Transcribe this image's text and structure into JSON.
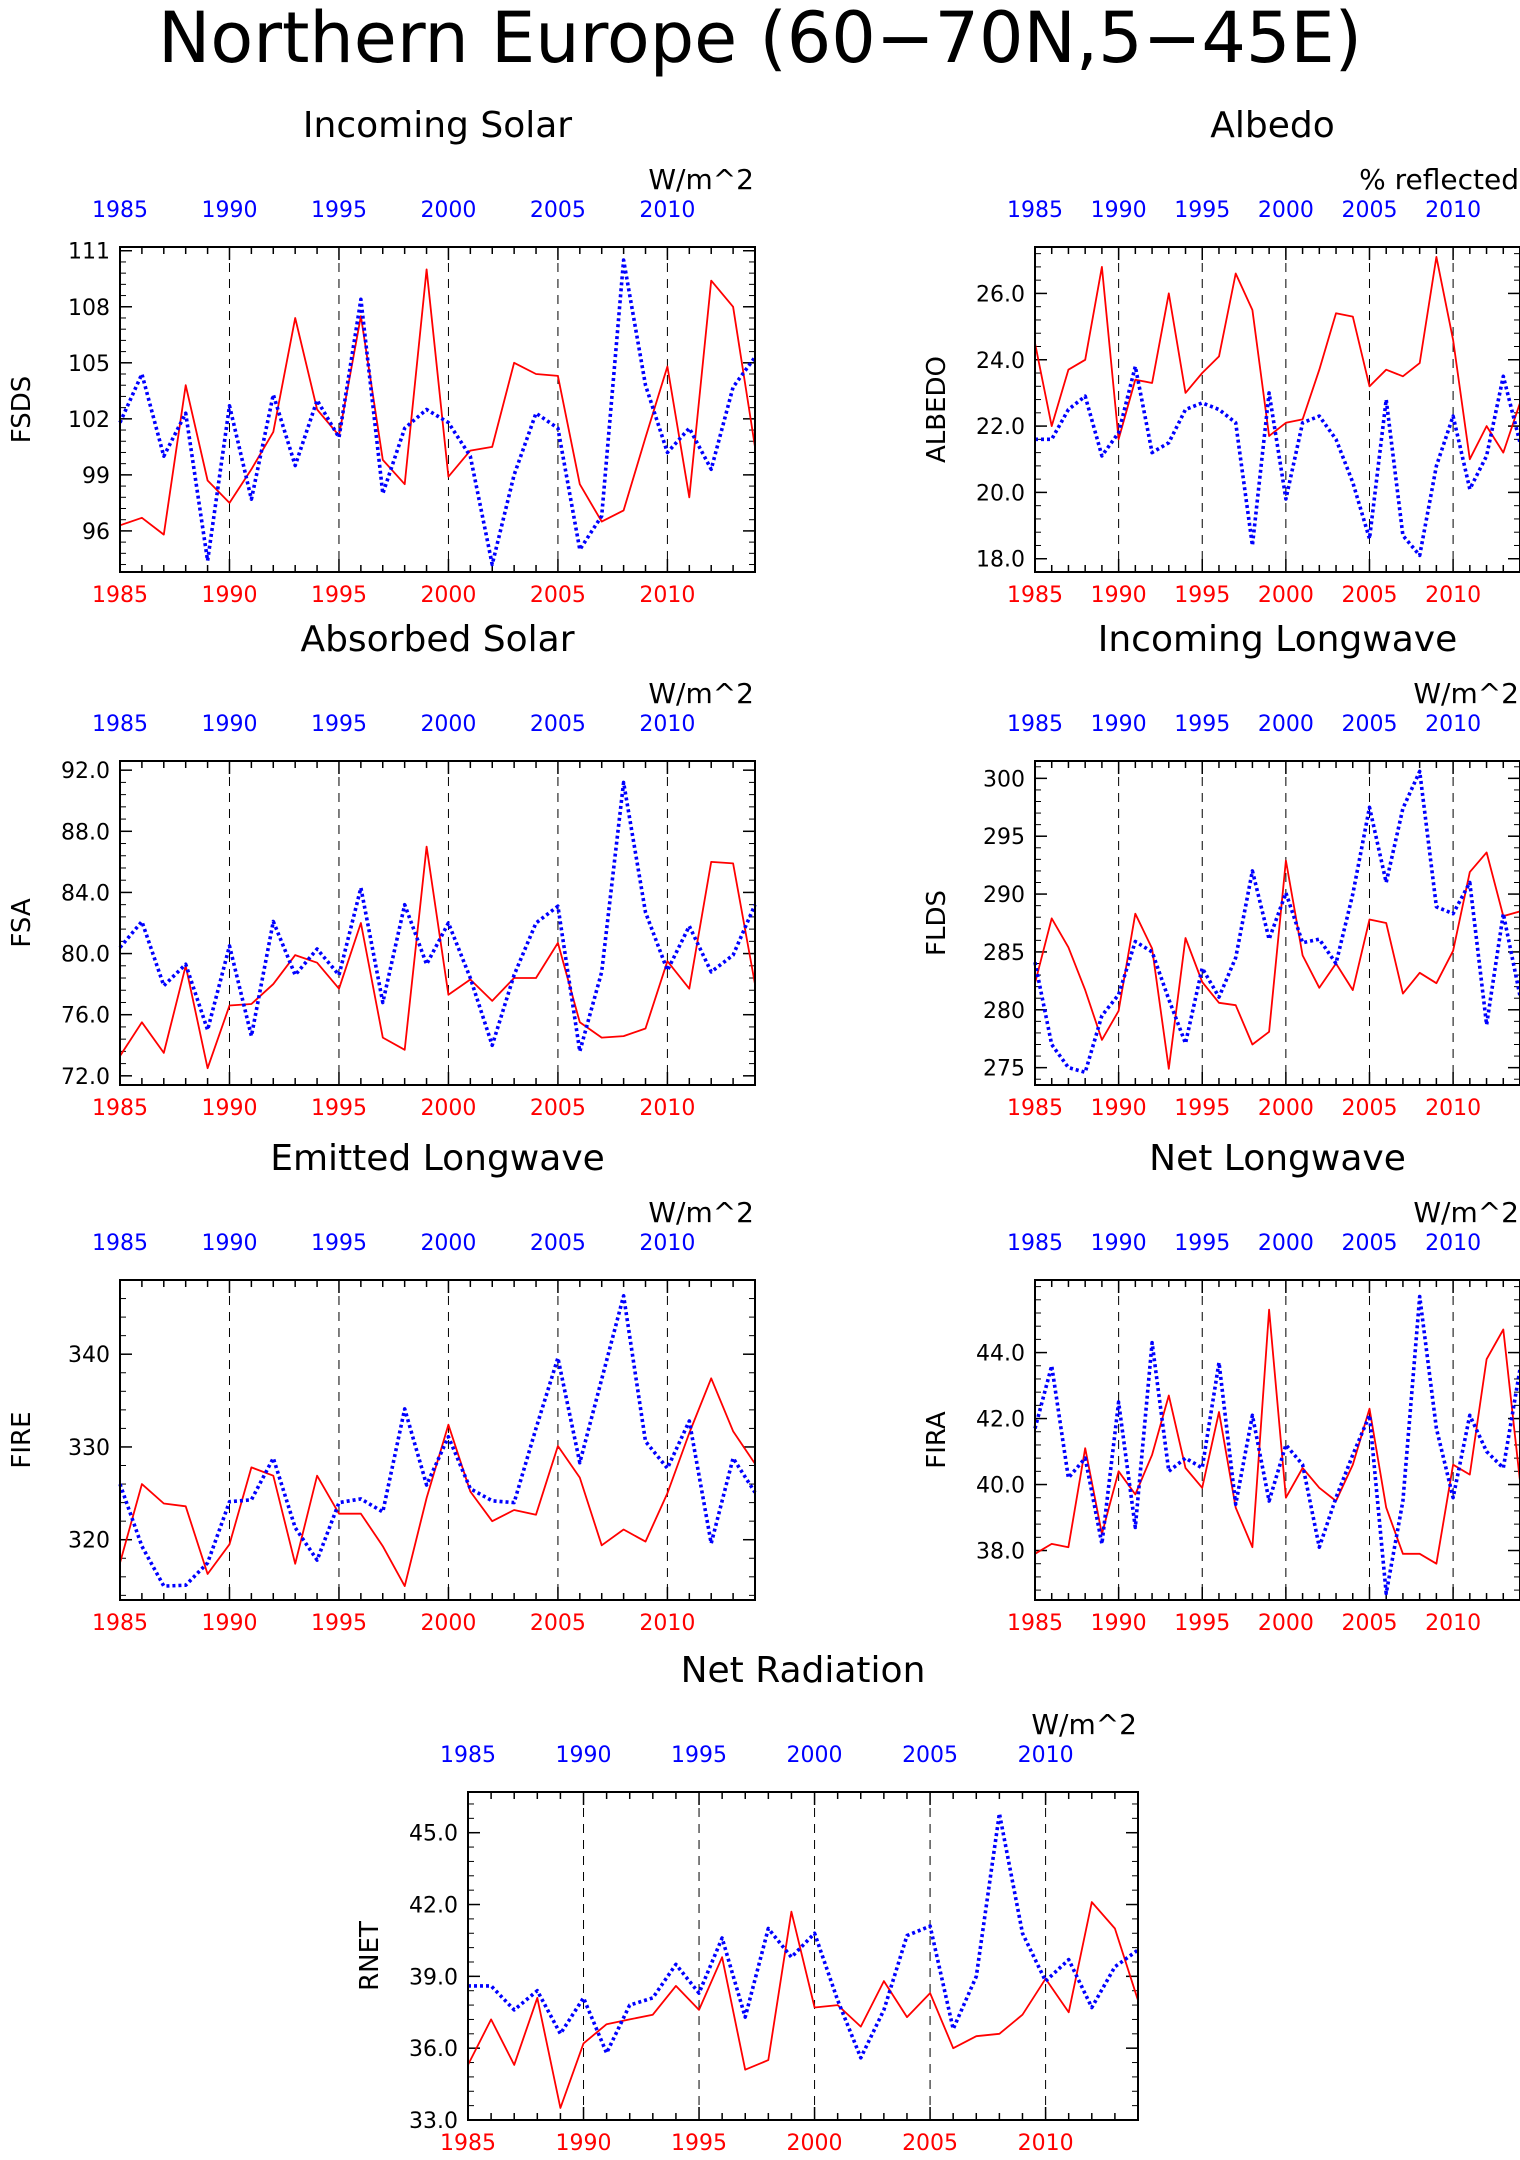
{
  "page_title": "Northern Europe (60−70N,5−45E)",
  "colors": {
    "series_a": "#ff0000",
    "series_b": "#0000ff",
    "axis": "#000000"
  },
  "chart_data": [
    {
      "type": "line",
      "title": "Incoming Solar",
      "units": "W/m^2",
      "ylabel": "FSDS",
      "ylim": [
        93.8,
        111.2
      ],
      "yticks": [
        "96",
        "99",
        "102",
        "105",
        "108",
        "111"
      ],
      "x": [
        1985,
        1986,
        1987,
        1988,
        1989,
        1990,
        1991,
        1992,
        1993,
        1994,
        1995,
        1996,
        1997,
        1998,
        1999,
        2000,
        2001,
        2002,
        2003,
        2004,
        2005,
        2006,
        2007,
        2008,
        2009,
        2010,
        2011,
        2012,
        2013,
        2014
      ],
      "xticks": [
        "1985",
        "1990",
        "1995",
        "2000",
        "2005",
        "2010"
      ],
      "series": [
        {
          "color": "#ff0000",
          "style": "solid",
          "values": [
            96.3,
            96.7,
            95.8,
            103.8,
            98.7,
            97.5,
            99.3,
            101.3,
            107.4,
            102.5,
            101.1,
            107.5,
            99.8,
            98.5,
            110.0,
            98.9,
            100.3,
            100.5,
            105.0,
            104.4,
            104.3,
            98.5,
            96.5,
            97.1,
            101.0,
            104.8,
            97.8,
            109.4,
            108.0,
            100.5
          ]
        },
        {
          "color": "#0000ff",
          "style": "dotted",
          "values": [
            101.8,
            104.4,
            100.0,
            102.3,
            94.4,
            102.7,
            97.7,
            103.3,
            99.5,
            103.0,
            101.0,
            108.4,
            98.0,
            101.5,
            102.5,
            101.8,
            100.0,
            94.2,
            99.0,
            102.3,
            101.5,
            95.0,
            96.8,
            110.5,
            103.8,
            100.2,
            101.5,
            99.3,
            103.7,
            105.3
          ]
        }
      ]
    },
    {
      "type": "line",
      "title": "Albedo",
      "units": "% reflected",
      "ylabel": "ALBEDO",
      "ylim": [
        17.6,
        27.4
      ],
      "yticks": [
        "18.0",
        "20.0",
        "22.0",
        "24.0",
        "26.0"
      ],
      "x": [
        1985,
        1986,
        1987,
        1988,
        1989,
        1990,
        1991,
        1992,
        1993,
        1994,
        1995,
        1996,
        1997,
        1998,
        1999,
        2000,
        2001,
        2002,
        2003,
        2004,
        2005,
        2006,
        2007,
        2008,
        2009,
        2010,
        2011,
        2012,
        2013,
        2014
      ],
      "xticks": [
        "1985",
        "1990",
        "1995",
        "2000",
        "2005",
        "2010"
      ],
      "series": [
        {
          "color": "#ff0000",
          "style": "solid",
          "values": [
            24.5,
            22.0,
            23.7,
            24.0,
            26.8,
            21.6,
            23.4,
            23.3,
            26.0,
            23.0,
            23.6,
            24.1,
            26.6,
            25.5,
            21.7,
            22.1,
            22.2,
            23.7,
            25.4,
            25.3,
            23.2,
            23.7,
            23.5,
            23.9,
            27.1,
            24.6,
            21.0,
            22.0,
            21.2,
            22.7
          ]
        },
        {
          "color": "#0000ff",
          "style": "dotted",
          "values": [
            21.6,
            21.6,
            22.5,
            22.9,
            21.1,
            21.8,
            23.8,
            21.2,
            21.5,
            22.5,
            22.7,
            22.5,
            22.1,
            18.4,
            23.0,
            19.8,
            22.1,
            22.3,
            21.6,
            20.3,
            18.6,
            22.8,
            18.7,
            18.1,
            20.8,
            22.3,
            20.1,
            21.1,
            23.5,
            21.5
          ]
        }
      ]
    },
    {
      "type": "line",
      "title": "Absorbed Solar",
      "units": "W/m^2",
      "ylabel": "FSA",
      "ylim": [
        71.4,
        92.6
      ],
      "yticks": [
        "72.0",
        "76.0",
        "80.0",
        "84.0",
        "88.0",
        "92.0"
      ],
      "x": [
        1985,
        1986,
        1987,
        1988,
        1989,
        1990,
        1991,
        1992,
        1993,
        1994,
        1995,
        1996,
        1997,
        1998,
        1999,
        2000,
        2001,
        2002,
        2003,
        2004,
        2005,
        2006,
        2007,
        2008,
        2009,
        2010,
        2011,
        2012,
        2013,
        2014
      ],
      "xticks": [
        "1985",
        "1990",
        "1995",
        "2000",
        "2005",
        "2010"
      ],
      "series": [
        {
          "color": "#ff0000",
          "style": "solid",
          "values": [
            73.3,
            75.5,
            73.5,
            79.2,
            72.5,
            76.6,
            76.7,
            78.0,
            79.9,
            79.4,
            77.7,
            82.0,
            74.5,
            73.7,
            87.0,
            77.3,
            78.3,
            76.9,
            78.4,
            78.4,
            80.7,
            75.5,
            74.5,
            74.6,
            75.1,
            79.5,
            77.7,
            86.0,
            85.9,
            78.0
          ]
        },
        {
          "color": "#0000ff",
          "style": "dotted",
          "values": [
            80.4,
            82.1,
            77.9,
            79.3,
            75.0,
            80.5,
            74.6,
            82.1,
            78.6,
            80.3,
            78.6,
            84.3,
            76.8,
            83.2,
            79.3,
            82.0,
            78.4,
            74.0,
            78.6,
            82.0,
            83.1,
            73.6,
            78.8,
            91.2,
            82.7,
            78.9,
            81.8,
            78.8,
            79.9,
            83.2
          ]
        }
      ]
    },
    {
      "type": "line",
      "title": "Incoming Longwave",
      "units": "W/m^2",
      "ylabel": "FLDS",
      "ylim": [
        273.5,
        301.5
      ],
      "yticks": [
        "275",
        "280",
        "285",
        "290",
        "295",
        "300"
      ],
      "x": [
        1985,
        1986,
        1987,
        1988,
        1989,
        1990,
        1991,
        1992,
        1993,
        1994,
        1995,
        1996,
        1997,
        1998,
        1999,
        2000,
        2001,
        2002,
        2003,
        2004,
        2005,
        2006,
        2007,
        2008,
        2009,
        2010,
        2011,
        2012,
        2013,
        2014
      ],
      "xticks": [
        "1985",
        "1990",
        "1995",
        "2000",
        "2005",
        "2010"
      ],
      "series": [
        {
          "color": "#ff0000",
          "style": "solid",
          "values": [
            282.3,
            287.9,
            285.4,
            281.7,
            277.4,
            279.9,
            288.3,
            285.3,
            274.9,
            286.2,
            282.4,
            280.6,
            280.4,
            277.0,
            278.1,
            292.9,
            284.7,
            281.9,
            284.0,
            281.7,
            287.8,
            287.5,
            281.4,
            283.2,
            282.3,
            285.1,
            291.9,
            293.6,
            288.1,
            288.5
          ]
        },
        {
          "color": "#0000ff",
          "style": "dotted",
          "values": [
            284.1,
            277.0,
            275.0,
            274.6,
            279.5,
            281.3,
            285.9,
            285.0,
            280.9,
            277.1,
            283.6,
            281.1,
            284.5,
            292.0,
            286.1,
            290.1,
            285.8,
            286.1,
            284.0,
            290.0,
            297.5,
            291.0,
            297.4,
            300.6,
            288.9,
            288.3,
            291.0,
            278.7,
            288.3,
            281.2
          ]
        }
      ]
    },
    {
      "type": "line",
      "title": "Emitted Longwave",
      "units": "W/m^2",
      "ylabel": "FIRE",
      "ylim": [
        313.5,
        348.0
      ],
      "yticks": [
        "320",
        "330",
        "340"
      ],
      "x": [
        1985,
        1986,
        1987,
        1988,
        1989,
        1990,
        1991,
        1992,
        1993,
        1994,
        1995,
        1996,
        1997,
        1998,
        1999,
        2000,
        2001,
        2002,
        2003,
        2004,
        2005,
        2006,
        2007,
        2008,
        2009,
        2010,
        2011,
        2012,
        2013,
        2014
      ],
      "xticks": [
        "1985",
        "1990",
        "1995",
        "2000",
        "2005",
        "2010"
      ],
      "series": [
        {
          "color": "#ff0000",
          "style": "solid",
          "values": [
            317.5,
            326.0,
            323.9,
            323.6,
            316.3,
            319.5,
            327.8,
            326.9,
            317.4,
            326.9,
            322.8,
            322.8,
            319.3,
            315.0,
            324.5,
            332.4,
            325.2,
            322.0,
            323.2,
            322.7,
            330.1,
            326.7,
            319.4,
            321.1,
            319.8,
            325.0,
            331.5,
            337.4,
            331.7,
            328.2
          ]
        },
        {
          "color": "#0000ff",
          "style": "dotted",
          "values": [
            326.0,
            319.3,
            315.0,
            315.1,
            317.5,
            324.1,
            324.3,
            328.8,
            321.3,
            317.8,
            324.0,
            324.4,
            323.0,
            334.1,
            325.9,
            331.1,
            325.5,
            324.2,
            324.0,
            332.0,
            339.6,
            328.3,
            337.3,
            346.3,
            330.6,
            327.7,
            332.8,
            319.6,
            328.8,
            325.1
          ]
        }
      ]
    },
    {
      "type": "line",
      "title": "Net Longwave",
      "units": "W/m^2",
      "ylabel": "FIRA",
      "ylim": [
        36.5,
        46.2
      ],
      "yticks": [
        "38.0",
        "40.0",
        "42.0",
        "44.0"
      ],
      "x": [
        1985,
        1986,
        1987,
        1988,
        1989,
        1990,
        1991,
        1992,
        1993,
        1994,
        1995,
        1996,
        1997,
        1998,
        1999,
        2000,
        2001,
        2002,
        2003,
        2004,
        2005,
        2006,
        2007,
        2008,
        2009,
        2010,
        2011,
        2012,
        2013,
        2014
      ],
      "xticks": [
        "1985",
        "1990",
        "1995",
        "2000",
        "2005",
        "2010"
      ],
      "series": [
        {
          "color": "#ff0000",
          "style": "solid",
          "values": [
            37.9,
            38.2,
            38.1,
            41.1,
            38.5,
            40.4,
            39.7,
            40.9,
            42.7,
            40.5,
            39.9,
            42.2,
            39.3,
            38.1,
            45.3,
            39.6,
            40.5,
            39.9,
            39.5,
            40.6,
            42.3,
            39.3,
            37.9,
            37.9,
            37.6,
            40.6,
            40.3,
            43.8,
            44.7,
            40.1
          ]
        },
        {
          "color": "#0000ff",
          "style": "dotted",
          "values": [
            41.7,
            43.6,
            40.2,
            40.8,
            38.2,
            42.5,
            38.7,
            44.3,
            40.4,
            40.8,
            40.5,
            43.7,
            39.4,
            42.1,
            39.5,
            41.2,
            40.6,
            38.1,
            39.6,
            40.9,
            42.1,
            36.7,
            39.5,
            45.7,
            41.7,
            39.6,
            42.1,
            41.0,
            40.5,
            43.5
          ]
        }
      ]
    },
    {
      "type": "line",
      "title": "Net Radiation",
      "units": "W/m^2",
      "ylabel": "RNET",
      "ylim": [
        33.0,
        46.7
      ],
      "yticks": [
        "33.0",
        "36.0",
        "39.0",
        "42.0",
        "45.0"
      ],
      "x": [
        1985,
        1986,
        1987,
        1988,
        1989,
        1990,
        1991,
        1992,
        1993,
        1994,
        1995,
        1996,
        1997,
        1998,
        1999,
        2000,
        2001,
        2002,
        2003,
        2004,
        2005,
        2006,
        2007,
        2008,
        2009,
        2010,
        2011,
        2012,
        2013,
        2014
      ],
      "xticks": [
        "1985",
        "1990",
        "1995",
        "2000",
        "2005",
        "2010"
      ],
      "series": [
        {
          "color": "#ff0000",
          "style": "solid",
          "values": [
            35.3,
            37.2,
            35.3,
            38.1,
            33.5,
            36.2,
            37.0,
            37.2,
            37.4,
            38.6,
            37.6,
            39.8,
            35.1,
            35.5,
            41.7,
            37.7,
            37.8,
            36.9,
            38.8,
            37.3,
            38.3,
            36.0,
            36.5,
            36.6,
            37.4,
            38.9,
            37.5,
            42.1,
            41.0,
            38.0
          ]
        },
        {
          "color": "#0000ff",
          "style": "dotted",
          "values": [
            38.6,
            38.6,
            37.6,
            38.4,
            36.6,
            38.1,
            35.8,
            37.8,
            38.1,
            39.5,
            38.3,
            40.6,
            37.3,
            41.0,
            39.8,
            40.8,
            38.0,
            35.6,
            37.6,
            40.7,
            41.1,
            36.8,
            39.0,
            45.8,
            40.8,
            38.8,
            39.7,
            37.7,
            39.4,
            40.1
          ]
        }
      ]
    }
  ]
}
